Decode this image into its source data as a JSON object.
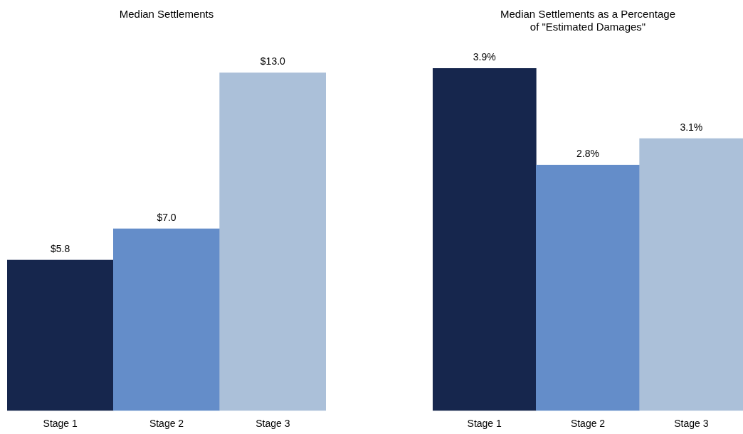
{
  "chart_data": [
    {
      "type": "bar",
      "title": "Median Settlements",
      "categories": [
        "Stage 1",
        "Stage 2",
        "Stage 3"
      ],
      "values": [
        5.8,
        7.0,
        13.0
      ],
      "colors": [
        "#16264d",
        "#648dc9",
        "#abc0d9"
      ],
      "value_labels": [
        "$5.8",
        "$7.0",
        "$13.0"
      ],
      "grid": false,
      "legend": false
    },
    {
      "type": "bar",
      "title": [
        "Median Settlements as a Percentage",
        "of \"Estimated Damages\""
      ],
      "categories": [
        "Stage 1",
        "Stage 2",
        "Stage 3"
      ],
      "values": [
        3.9,
        2.8,
        3.1
      ],
      "colors": [
        "#16264d",
        "#648dc9",
        "#abc0d9"
      ],
      "value_labels": [
        "3.9%",
        "2.8%",
        "3.1%"
      ],
      "grid": false,
      "legend": false
    }
  ]
}
